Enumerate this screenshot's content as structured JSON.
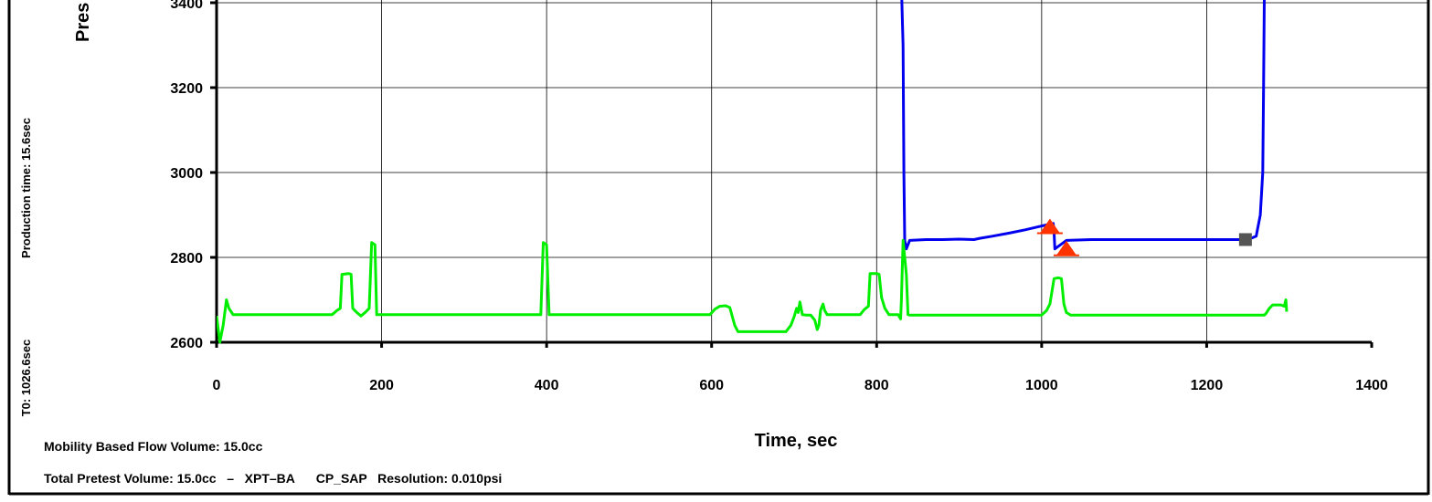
{
  "chart_data": {
    "type": "line",
    "ylabel": "Pres",
    "xlabel": "Time, sec",
    "xlim": [
      0,
      1400
    ],
    "ylim": [
      2600,
      3400
    ],
    "x_ticks": [
      0,
      200,
      400,
      600,
      800,
      1000,
      1200,
      1400
    ],
    "y_ticks": [
      2600,
      2800,
      3000,
      3200,
      3400
    ],
    "grid": true,
    "series": [
      {
        "color": "#0000ee",
        "points": [
          [
            830,
            3440
          ],
          [
            832,
            3300
          ],
          [
            833,
            3000
          ],
          [
            834,
            2840
          ],
          [
            836,
            2820
          ],
          [
            840,
            2840
          ],
          [
            860,
            2842
          ],
          [
            880,
            2842
          ],
          [
            900,
            2843
          ],
          [
            918,
            2842
          ],
          [
            925,
            2845
          ],
          [
            940,
            2850
          ],
          [
            960,
            2857
          ],
          [
            980,
            2865
          ],
          [
            1000,
            2874
          ],
          [
            1014,
            2880
          ],
          [
            1015,
            2860
          ],
          [
            1016,
            2820
          ],
          [
            1030,
            2840
          ],
          [
            1060,
            2842
          ],
          [
            1100,
            2842
          ],
          [
            1150,
            2842
          ],
          [
            1200,
            2842
          ],
          [
            1250,
            2842
          ],
          [
            1260,
            2850
          ],
          [
            1265,
            2900
          ],
          [
            1268,
            3000
          ],
          [
            1269,
            3200
          ],
          [
            1270,
            3440
          ]
        ]
      },
      {
        "color": "#00ee00",
        "points": [
          [
            0,
            2662
          ],
          [
            4,
            2600
          ],
          [
            8,
            2640
          ],
          [
            12,
            2700
          ],
          [
            15,
            2680
          ],
          [
            20,
            2665
          ],
          [
            60,
            2665
          ],
          [
            100,
            2665
          ],
          [
            140,
            2665
          ],
          [
            146,
            2675
          ],
          [
            150,
            2680
          ],
          [
            152,
            2760
          ],
          [
            160,
            2762
          ],
          [
            163,
            2760
          ],
          [
            165,
            2680
          ],
          [
            170,
            2670
          ],
          [
            175,
            2662
          ],
          [
            180,
            2670
          ],
          [
            185,
            2680
          ],
          [
            188,
            2835
          ],
          [
            192,
            2830
          ],
          [
            194,
            2665
          ],
          [
            200,
            2665
          ],
          [
            250,
            2665
          ],
          [
            300,
            2665
          ],
          [
            350,
            2665
          ],
          [
            393,
            2665
          ],
          [
            396,
            2835
          ],
          [
            400,
            2830
          ],
          [
            403,
            2665
          ],
          [
            450,
            2665
          ],
          [
            500,
            2665
          ],
          [
            550,
            2665
          ],
          [
            598,
            2665
          ],
          [
            604,
            2678
          ],
          [
            610,
            2685
          ],
          [
            617,
            2686
          ],
          [
            622,
            2682
          ],
          [
            628,
            2640
          ],
          [
            632,
            2625
          ],
          [
            660,
            2625
          ],
          [
            690,
            2625
          ],
          [
            696,
            2640
          ],
          [
            700,
            2660
          ],
          [
            703,
            2680
          ],
          [
            705,
            2670
          ],
          [
            707,
            2695
          ],
          [
            710,
            2665
          ],
          [
            715,
            2664
          ],
          [
            720,
            2664
          ],
          [
            725,
            2652
          ],
          [
            728,
            2630
          ],
          [
            730,
            2640
          ],
          [
            732,
            2675
          ],
          [
            735,
            2690
          ],
          [
            737,
            2675
          ],
          [
            740,
            2665
          ],
          [
            760,
            2665
          ],
          [
            780,
            2665
          ],
          [
            785,
            2677
          ],
          [
            790,
            2685
          ],
          [
            792,
            2762
          ],
          [
            800,
            2762
          ],
          [
            803,
            2760
          ],
          [
            806,
            2705
          ],
          [
            810,
            2680
          ],
          [
            815,
            2665
          ],
          [
            826,
            2665
          ],
          [
            829,
            2655
          ],
          [
            830,
            2700
          ],
          [
            832,
            2840
          ],
          [
            834,
            2800
          ],
          [
            836,
            2760
          ],
          [
            838,
            2665
          ],
          [
            840,
            2664
          ],
          [
            880,
            2664
          ],
          [
            920,
            2664
          ],
          [
            960,
            2664
          ],
          [
            1000,
            2664
          ],
          [
            1006,
            2675
          ],
          [
            1010,
            2690
          ],
          [
            1015,
            2750
          ],
          [
            1020,
            2752
          ],
          [
            1024,
            2750
          ],
          [
            1027,
            2690
          ],
          [
            1030,
            2670
          ],
          [
            1035,
            2664
          ],
          [
            1080,
            2664
          ],
          [
            1130,
            2664
          ],
          [
            1180,
            2664
          ],
          [
            1230,
            2664
          ],
          [
            1270,
            2664
          ],
          [
            1272,
            2668
          ],
          [
            1276,
            2680
          ],
          [
            1280,
            2688
          ],
          [
            1290,
            2688
          ],
          [
            1294,
            2685
          ],
          [
            1296,
            2700
          ],
          [
            1297,
            2672
          ]
        ]
      }
    ],
    "markers": [
      {
        "shape": "triangle",
        "color": "#ff3300",
        "x": 1010,
        "y": 2872
      },
      {
        "shape": "triangle",
        "color": "#ff3300",
        "x": 1030,
        "y": 2820
      },
      {
        "shape": "square",
        "color": "#555555",
        "x": 1247,
        "y": 2842
      }
    ]
  },
  "side_labels": {
    "production_time": "Production time: 15.6sec",
    "t0": "T0: 1026.6sec"
  },
  "footer": {
    "mobility": "Mobility Based Flow Volume: 15.0cc",
    "pretest": "Total Pretest Volume: 15.0cc   –   XPT–BA      CP_SAP   Resolution: 0.010psi"
  }
}
